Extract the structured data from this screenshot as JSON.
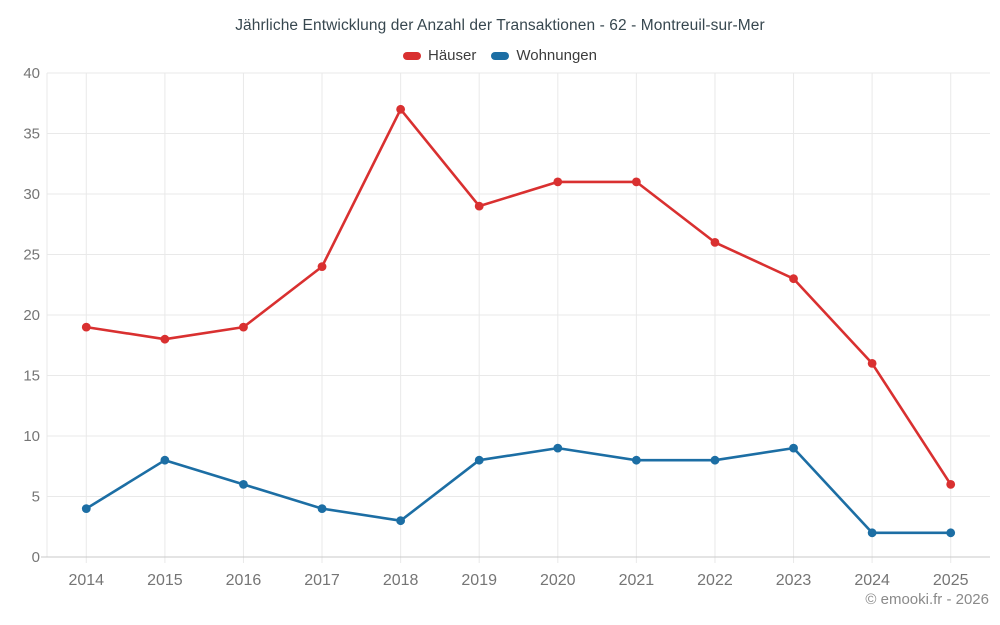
{
  "title": "Jährliche Entwicklung der Anzahl der Transaktionen - 62 - Montreuil-sur-Mer",
  "footer": "© emooki.fr - 2026",
  "colors": {
    "haeuser": "#d93030",
    "wohnungen": "#1c6ea4",
    "gridline": "#e9e9e9",
    "axis_line": "#c9c9c9",
    "tick_label": "#757575",
    "title_text": "#37474f"
  },
  "chart_data": {
    "type": "line",
    "title": "Jährliche Entwicklung der Anzahl der Transaktionen - 62 - Montreuil-sur-Mer",
    "categories": [
      "2014",
      "2015",
      "2016",
      "2017",
      "2018",
      "2019",
      "2020",
      "2021",
      "2022",
      "2023",
      "2024",
      "2025"
    ],
    "series": [
      {
        "name": "Häuser",
        "color": "#d93030",
        "values": [
          19,
          18,
          19,
          24,
          37,
          29,
          31,
          31,
          26,
          23,
          16,
          6
        ]
      },
      {
        "name": "Wohnungen",
        "color": "#1c6ea4",
        "values": [
          4,
          8,
          6,
          4,
          3,
          8,
          9,
          8,
          8,
          9,
          2,
          2
        ]
      }
    ],
    "xlabel": "",
    "ylabel": "",
    "ylim": [
      0,
      40
    ],
    "yticks": [
      0,
      5,
      10,
      15,
      20,
      25,
      30,
      35,
      40
    ],
    "grid": true,
    "legend_position": "top"
  }
}
